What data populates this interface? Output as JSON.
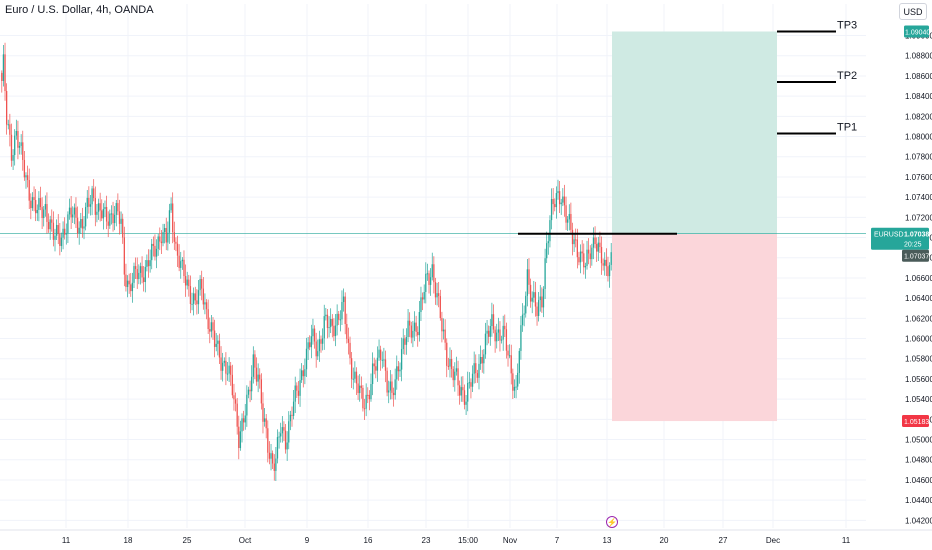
{
  "header": {
    "title": "Euro / U.S. Dollar, 4h, OANDA",
    "currency_label": "USD"
  },
  "events": {
    "icon": "lightning-bolt-icon"
  },
  "colors": {
    "up": "#26a69a",
    "down": "#ef5350",
    "profit_zone": "#cfeae3",
    "loss_zone": "#fbd6da",
    "grid": "#f0f3fa",
    "axis_text": "#131722",
    "level_line": "#000000",
    "price_line": "#26a69a",
    "tag_green": "#26a69a",
    "tag_red": "#f23645",
    "tag_dark": "#4a5b59",
    "bolt": "#9c27b0"
  },
  "chart_data": {
    "type": "candlestick",
    "symbol": "EURUSD",
    "y_axis": {
      "range": [
        1.0405,
        1.0915
      ],
      "ticks": [
        "1.04200",
        "1.04400",
        "1.04600",
        "1.04800",
        "1.05000",
        "1.05200",
        "1.05400",
        "1.05600",
        "1.05800",
        "1.06000",
        "1.06200",
        "1.06400",
        "1.06600",
        "1.06800",
        "1.07000",
        "1.07200",
        "1.07400",
        "1.07600",
        "1.07800",
        "1.08000",
        "1.08200",
        "1.08400",
        "1.08600",
        "1.08800",
        "1.09000"
      ]
    },
    "x_axis": {
      "labels": [
        "11",
        "18",
        "25",
        "Oct",
        "9",
        "16",
        "23",
        "15:00",
        "Nov",
        "7",
        "13",
        "20",
        "27",
        "Dec",
        "11"
      ]
    },
    "price_tags": {
      "tp_target": "1.09040",
      "current_symbol": "EURUSD",
      "current_price": "1.07038",
      "countdown": "20:25",
      "entry": "1.07037",
      "stop": "1.05183"
    },
    "position": {
      "type": "long",
      "entry": 1.07037,
      "target": 1.0904,
      "stop": 1.05183
    },
    "levels": [
      {
        "label": "TP3",
        "price": 1.0904
      },
      {
        "label": "TP2",
        "price": 1.0854
      },
      {
        "label": "TP1",
        "price": 1.0803
      }
    ],
    "waypoints": [
      [
        0,
        1.0855
      ],
      [
        1,
        1.087
      ],
      [
        3,
        1.0815
      ],
      [
        6,
        1.0785
      ],
      [
        9,
        1.0805
      ],
      [
        14,
        1.0765
      ],
      [
        18,
        1.074
      ],
      [
        22,
        1.0725
      ],
      [
        27,
        1.073
      ],
      [
        32,
        1.07
      ],
      [
        38,
        1.0705
      ],
      [
        44,
        1.0725
      ],
      [
        50,
        1.071
      ],
      [
        56,
        1.0745
      ],
      [
        60,
        1.0725
      ],
      [
        64,
        1.072
      ],
      [
        70,
        1.0725
      ],
      [
        74,
        1.0715
      ],
      [
        76,
        1.067
      ],
      [
        79,
        1.065
      ],
      [
        84,
        1.0665
      ],
      [
        90,
        1.067
      ],
      [
        95,
        1.069
      ],
      [
        99,
        1.0705
      ],
      [
        102,
        1.0695
      ],
      [
        105,
        1.073
      ],
      [
        108,
        1.069
      ],
      [
        112,
        1.0665
      ],
      [
        116,
        1.065
      ],
      [
        120,
        1.0635
      ],
      [
        124,
        1.065
      ],
      [
        128,
        1.062
      ],
      [
        132,
        1.0595
      ],
      [
        136,
        1.058
      ],
      [
        140,
        1.057
      ],
      [
        144,
        1.054
      ],
      [
        147,
        1.0505
      ],
      [
        150,
        1.052
      ],
      [
        153,
        1.054
      ],
      [
        156,
        1.058
      ],
      [
        159,
        1.0565
      ],
      [
        162,
        1.052
      ],
      [
        165,
        1.0495
      ],
      [
        168,
        1.0478
      ],
      [
        170,
        1.048
      ],
      [
        173,
        1.051
      ],
      [
        176,
        1.05
      ],
      [
        180,
        1.053
      ],
      [
        184,
        1.055
      ],
      [
        188,
        1.058
      ],
      [
        192,
        1.06
      ],
      [
        196,
        1.059
      ],
      [
        200,
        1.0615
      ],
      [
        204,
        1.061
      ],
      [
        208,
        1.062
      ],
      [
        212,
        1.063
      ],
      [
        215,
        1.059
      ],
      [
        218,
        1.0565
      ],
      [
        221,
        1.055
      ],
      [
        224,
        1.0535
      ],
      [
        227,
        1.0545
      ],
      [
        230,
        1.0565
      ],
      [
        233,
        1.0575
      ],
      [
        236,
        1.059
      ],
      [
        239,
        1.0555
      ],
      [
        242,
        1.054
      ],
      [
        246,
        1.0575
      ],
      [
        249,
        1.0595
      ],
      [
        252,
        1.0605
      ],
      [
        255,
        1.061
      ],
      [
        258,
        1.0615
      ],
      [
        261,
        1.064
      ],
      [
        264,
        1.066
      ],
      [
        267,
        1.067
      ],
      [
        270,
        1.064
      ],
      [
        273,
        1.061
      ],
      [
        276,
        1.0585
      ],
      [
        280,
        1.0565
      ],
      [
        284,
        1.055
      ],
      [
        288,
        1.0545
      ],
      [
        292,
        1.056
      ],
      [
        296,
        1.0575
      ],
      [
        300,
        1.0595
      ],
      [
        304,
        1.0615
      ],
      [
        308,
        1.0605
      ],
      [
        312,
        1.06
      ],
      [
        316,
        1.057
      ],
      [
        319,
        1.0545
      ],
      [
        321,
        1.059
      ],
      [
        323,
        1.0615
      ],
      [
        326,
        1.0665
      ],
      [
        329,
        1.064
      ],
      [
        332,
        1.0625
      ],
      [
        335,
        1.064
      ],
      [
        338,
        1.0695
      ],
      [
        341,
        1.0725
      ],
      [
        344,
        1.074
      ],
      [
        347,
        1.0745
      ],
      [
        350,
        1.072
      ],
      [
        353,
        1.0705
      ],
      [
        356,
        1.0695
      ],
      [
        359,
        1.068
      ],
      [
        362,
        1.067
      ],
      [
        365,
        1.069
      ],
      [
        368,
        1.07
      ],
      [
        371,
        1.068
      ],
      [
        374,
        1.067
      ],
      [
        378,
        1.068
      ]
    ]
  }
}
